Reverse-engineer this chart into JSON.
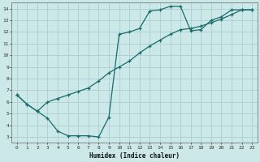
{
  "xlabel": "Humidex (Indice chaleur)",
  "ylabel": "",
  "bg_color": "#cce8e8",
  "line_color": "#1a6b6b",
  "grid_color": "#aacfcf",
  "xlim": [
    -0.5,
    23.5
  ],
  "ylim": [
    2.5,
    14.5
  ],
  "xticks": [
    0,
    1,
    2,
    3,
    4,
    5,
    6,
    7,
    8,
    9,
    10,
    11,
    12,
    13,
    14,
    15,
    16,
    17,
    18,
    19,
    20,
    21,
    22,
    23
  ],
  "yticks": [
    3,
    4,
    5,
    6,
    7,
    8,
    9,
    10,
    11,
    12,
    13,
    14
  ],
  "curve1_x": [
    0,
    1,
    2,
    3,
    4,
    5,
    6,
    7,
    8,
    9,
    10,
    11,
    12,
    13,
    14,
    15,
    16,
    17,
    18,
    19,
    20,
    21,
    22,
    23
  ],
  "curve1_y": [
    6.6,
    5.8,
    5.2,
    4.6,
    3.5,
    3.1,
    3.1,
    3.1,
    3.0,
    4.7,
    11.8,
    12.0,
    12.3,
    13.8,
    13.9,
    14.2,
    14.2,
    12.1,
    12.2,
    13.0,
    13.3,
    13.9,
    13.9,
    13.9
  ],
  "curve2_x": [
    0,
    1,
    2,
    3,
    4,
    5,
    6,
    7,
    8,
    9,
    10,
    11,
    12,
    13,
    14,
    15,
    16,
    17,
    18,
    19,
    20,
    21,
    22,
    23
  ],
  "curve2_y": [
    6.6,
    5.8,
    5.2,
    6.0,
    6.3,
    6.6,
    6.9,
    7.2,
    7.8,
    8.5,
    9.0,
    9.5,
    10.2,
    10.8,
    11.3,
    11.8,
    12.2,
    12.3,
    12.5,
    12.8,
    13.1,
    13.5,
    13.9,
    13.9
  ]
}
